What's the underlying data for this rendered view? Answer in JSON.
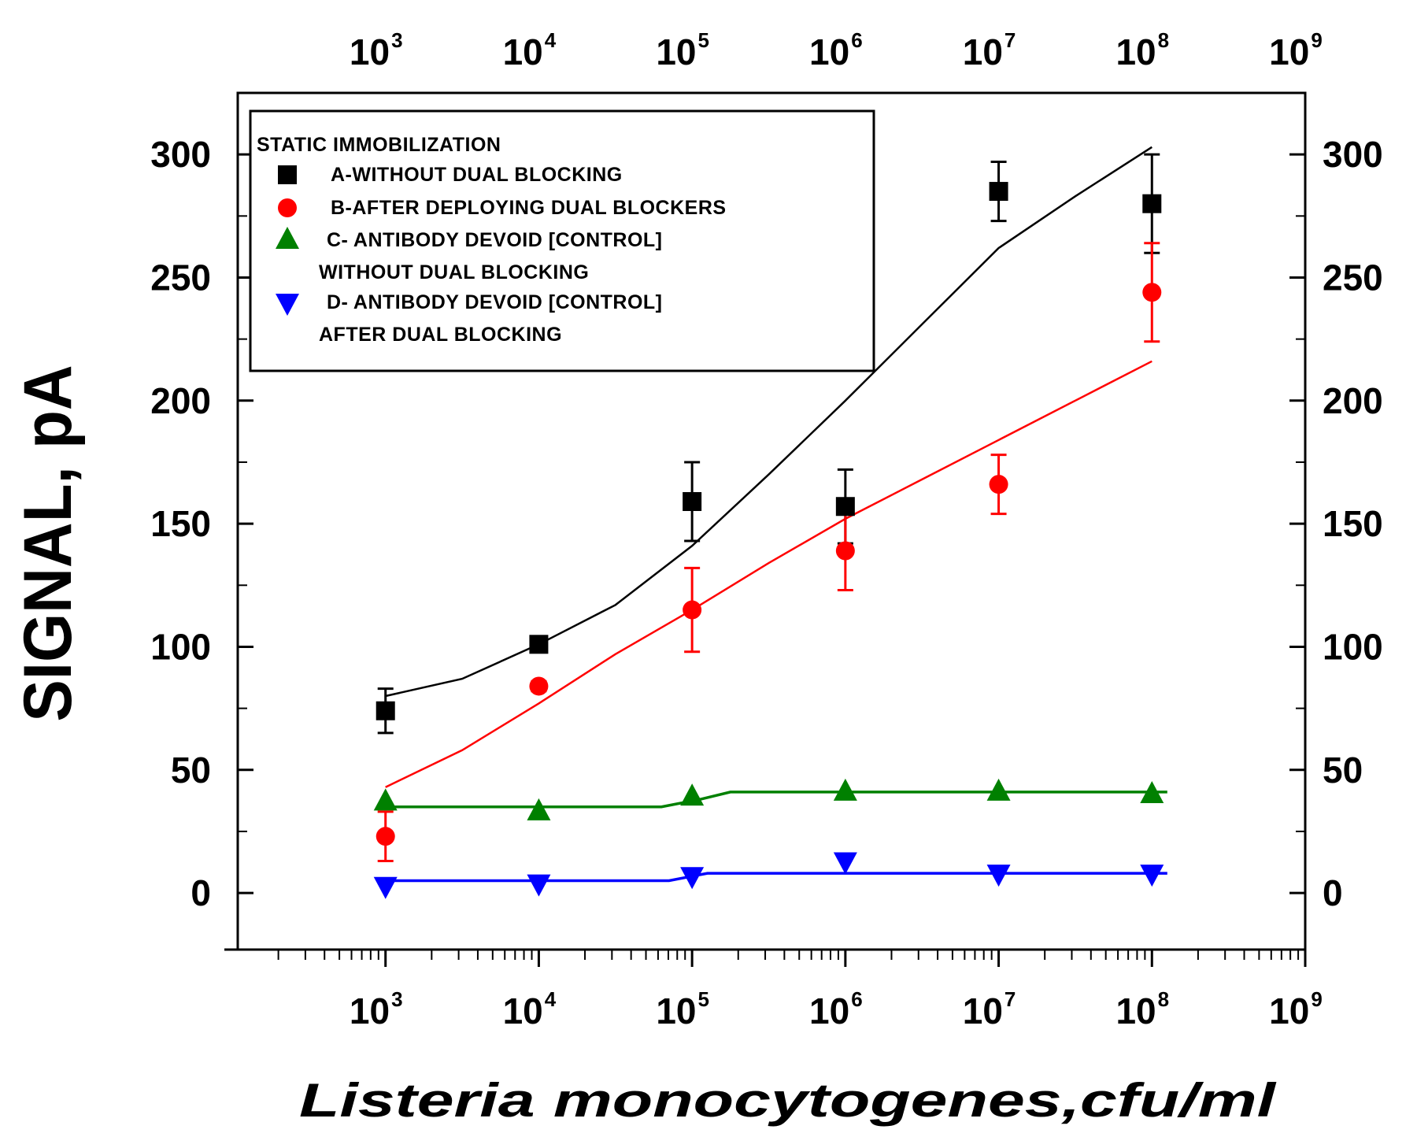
{
  "chart_data": {
    "type": "scatter",
    "x_scale": "log",
    "xlim_exponent": [
      2,
      9
    ],
    "x_tick_base": "10",
    "x_tick_exponents": [
      "3",
      "4",
      "5",
      "6",
      "7",
      "8",
      "9"
    ],
    "ylim": [
      -23,
      325
    ],
    "y_ticks": [
      0,
      50,
      100,
      150,
      200,
      250,
      300
    ],
    "y_tick_labels": [
      "0",
      "50",
      "100",
      "150",
      "200",
      "250",
      "300"
    ],
    "xlabel": "Listeria monocytogenes,cfu/ml",
    "ylabel": "SIGNAL, pA",
    "legend": {
      "title": "STATIC IMMOBILIZATION",
      "position": "top-left",
      "entries": [
        {
          "lines": [
            "A-WITHOUT DUAL BLOCKING"
          ]
        },
        {
          "lines": [
            "B-AFTER DEPLOYING DUAL BLOCKERS"
          ]
        },
        {
          "lines": [
            "C- ANTIBODY DEVOID [CONTROL]",
            "WITHOUT DUAL BLOCKING"
          ]
        },
        {
          "lines": [
            "D- ANTIBODY DEVOID [CONTROL]",
            "AFTER DUAL BLOCKING"
          ]
        }
      ]
    },
    "series": [
      {
        "name": "A-WITHOUT DUAL BLOCKING",
        "color": "#000000",
        "marker": "square",
        "x_exp": [
          3,
          4,
          5,
          6,
          7,
          8
        ],
        "y": [
          74,
          101,
          159,
          157,
          285,
          280
        ],
        "err": [
          9,
          2,
          16,
          15,
          12,
          20
        ],
        "fit": [
          [
            3,
            80
          ],
          [
            3.5,
            87
          ],
          [
            4,
            101
          ],
          [
            4.5,
            117
          ],
          [
            5,
            141
          ],
          [
            5.5,
            170
          ],
          [
            6,
            200
          ],
          [
            6.5,
            231
          ],
          [
            7,
            262
          ],
          [
            7.5,
            283
          ],
          [
            8,
            303
          ]
        ]
      },
      {
        "name": "B-AFTER DEPLOYING DUAL BLOCKERS",
        "color": "#ff0000",
        "marker": "circle",
        "x_exp": [
          3,
          4,
          5,
          6,
          7,
          8
        ],
        "y": [
          23,
          84,
          115,
          139,
          166,
          244
        ],
        "err": [
          10,
          2,
          17,
          16,
          12,
          20
        ],
        "fit": [
          [
            3,
            43
          ],
          [
            3.5,
            58
          ],
          [
            4,
            77
          ],
          [
            4.5,
            97
          ],
          [
            5,
            115
          ],
          [
            5.5,
            134
          ],
          [
            6,
            152
          ],
          [
            6.5,
            168
          ],
          [
            7,
            184
          ],
          [
            7.5,
            200
          ],
          [
            8,
            216
          ]
        ]
      },
      {
        "name": "C- ANTIBODY DEVOID [CONTROL]",
        "color": "#008000",
        "marker": "triangle-up",
        "x_exp": [
          3,
          4,
          5,
          6,
          7,
          8
        ],
        "y": [
          37,
          33,
          39,
          41,
          41,
          40
        ],
        "err": [
          0,
          0,
          0,
          0,
          0,
          0
        ],
        "fit": [
          [
            3,
            35
          ],
          [
            4.8,
            35
          ],
          [
            5.05,
            38
          ],
          [
            5.25,
            41
          ],
          [
            8.1,
            41
          ]
        ]
      },
      {
        "name": "D- ANTIBODY DEVOID [CONTROL]",
        "color": "#0000ff",
        "marker": "triangle-down",
        "x_exp": [
          3,
          4,
          5,
          6,
          7,
          8
        ],
        "y": [
          3,
          4,
          7,
          13,
          8,
          8
        ],
        "err": [
          0,
          0,
          0,
          0,
          0,
          0
        ],
        "fit": [
          [
            3,
            5
          ],
          [
            4.85,
            5
          ],
          [
            5.1,
            8
          ],
          [
            8.1,
            8
          ]
        ]
      }
    ]
  }
}
